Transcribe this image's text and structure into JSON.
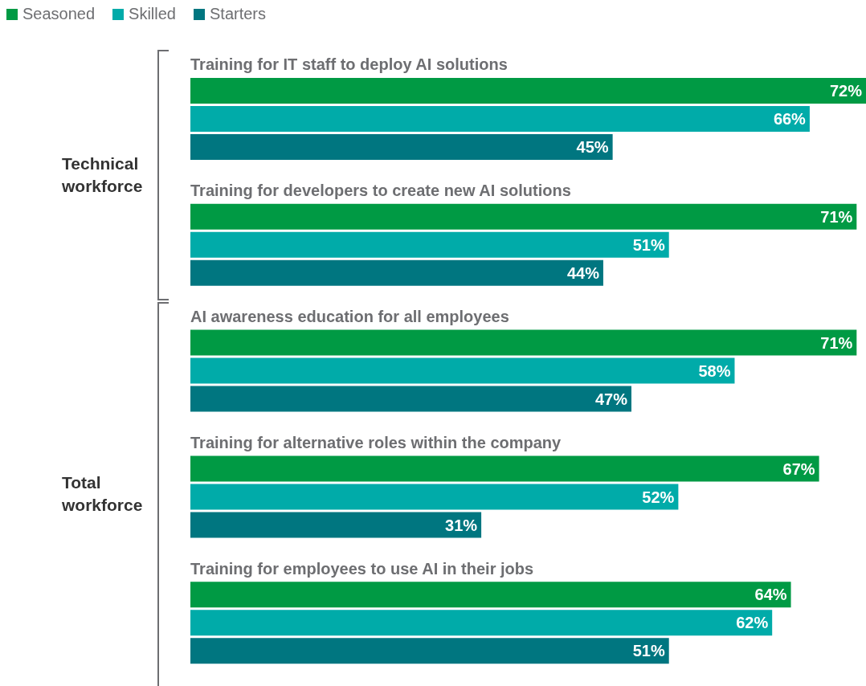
{
  "chart_data": {
    "type": "bar",
    "orientation": "horizontal",
    "categories": [
      "Training for IT staff to deploy AI solutions",
      "Training for developers to create new AI solutions",
      "AI awareness education for all employees",
      "Training for alternative roles within the company",
      "Training for employees to use AI in their jobs"
    ],
    "series": [
      {
        "name": "Seasoned",
        "color": "#009a44",
        "values": [
          72,
          71,
          71,
          67,
          64
        ],
        "value_labels": [
          "72%",
          "71%",
          "71%",
          "67%",
          "64%"
        ]
      },
      {
        "name": "Skilled",
        "color": "#00aba9",
        "values": [
          66,
          51,
          58,
          52,
          62
        ],
        "value_labels": [
          "66%",
          "51%",
          "58%",
          "52%",
          "62%"
        ]
      },
      {
        "name": "Starters",
        "color": "#007680",
        "values": [
          45,
          44,
          47,
          31,
          51
        ],
        "value_labels": [
          "45%",
          "44%",
          "47%",
          "31%",
          "51%"
        ]
      }
    ],
    "annotations": [
      "Technical workforce",
      "Total workforce"
    ],
    "legend": "top left",
    "tick_labels": false,
    "grid": false
  }
}
